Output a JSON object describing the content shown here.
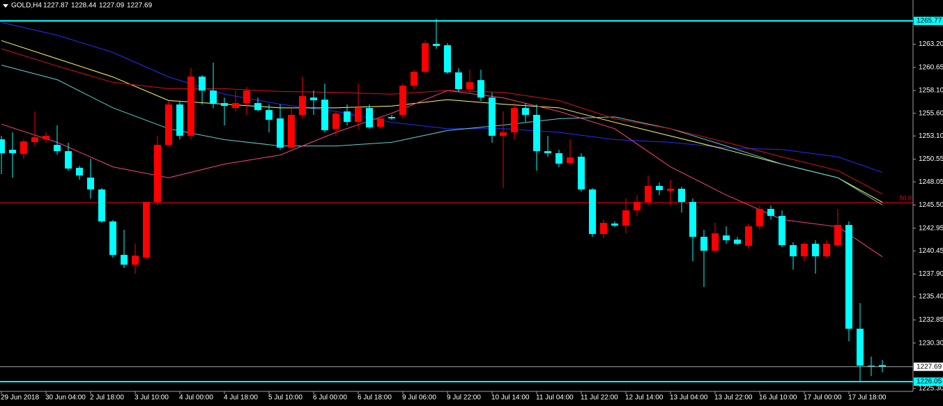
{
  "chart_data": {
    "type": "candlestick",
    "symbol": "GOLD,H4",
    "background": "#000000",
    "up_color": "#ff0000",
    "down_color": "#00ffff",
    "categories": [
      "29 Jun 2018",
      null,
      null,
      null,
      "30 Jun 04:00",
      null,
      null,
      null,
      "2 Jul 18:00",
      null,
      null,
      null,
      "3 Jul 10:00",
      null,
      null,
      null,
      "4 Jul 00:00",
      null,
      null,
      null,
      "4 Jul 18:00",
      null,
      null,
      null,
      "5 Jul 10:00",
      null,
      null,
      null,
      "6 Jul 00:00",
      null,
      null,
      null,
      "6 Jul 18:00",
      null,
      null,
      null,
      "9 Jul 06:00",
      null,
      null,
      null,
      "9 Jul 22:00",
      null,
      null,
      null,
      "10 Jul 14:00",
      null,
      null,
      null,
      "11 Jul 04:00",
      null,
      null,
      null,
      "11 Jul 22:00",
      null,
      null,
      null,
      "12 Jul 14:00",
      null,
      null,
      null,
      "13 Jul 04:00",
      null,
      null,
      null,
      "13 Jul 22:00",
      null,
      null,
      null,
      "16 Jul 10:00",
      null,
      null,
      null,
      "17 Jul 00:00",
      null,
      null,
      null,
      "17 Jul 18:00",
      null,
      null,
      null
    ],
    "open": [
      1252.73,
      1251.58,
      1251.12,
      1252.43,
      1252.73,
      1252.12,
      1251.43,
      1249.59,
      1248.52,
      1247.21,
      1243.69,
      1240.01,
      1238.93,
      1239.7,
      1245.83,
      1252.12,
      1256.57,
      1253.12,
      1259.64,
      1258.1,
      1256.72,
      1256.18,
      1256.72,
      1256.72,
      1255.95,
      1255.03,
      1251.81,
      1255.42,
      1257.33,
      1257.1,
      1253.88,
      1255.8,
      1254.65,
      1256.18,
      1254.11,
      1255.19,
      1255.42,
      1258.64,
      1260.17,
      1263.24,
      1263.09,
      1260.1,
      1258.25,
      1259.25,
      1257.33,
      1253.12,
      1253.5,
      1256.18,
      1255.42,
      1251.43,
      1251.2,
      1250.13,
      1250.82,
      1247.21,
      1242.31,
      1243.46,
      1243.23,
      1244.91,
      1245.83,
      1247.6,
      1247.06,
      1247.29,
      1245.83,
      1242.0,
      1240.47,
      1242.15,
      1241.69,
      1241.0,
      1243.15,
      1245.07,
      1244.3,
      1241.08,
      1239.85,
      1241.23,
      1239.85,
      1241.08,
      1243.3,
      1231.88,
      1227.81,
      1227.87
    ],
    "high": [
      1253.12,
      1253.5,
      1252.73,
      1255.8,
      1253.5,
      1254.27,
      1252.35,
      1249.82,
      1250.59,
      1247.37,
      1243.84,
      1242.77,
      1241.23,
      1245.83,
      1253.12,
      1256.95,
      1256.95,
      1260.56,
      1259.79,
      1261.17,
      1257.33,
      1258.1,
      1258.48,
      1257.33,
      1256.57,
      1256.57,
      1256.18,
      1259.64,
      1258.1,
      1258.87,
      1255.8,
      1256.57,
      1258.87,
      1256.57,
      1255.19,
      1255.42,
      1258.87,
      1260.4,
      1263.62,
      1266.0,
      1263.32,
      1260.56,
      1260.4,
      1260.4,
      1257.87,
      1255.8,
      1256.72,
      1256.72,
      1256.57,
      1253.12,
      1251.58,
      1252.73,
      1251.2,
      1247.37,
      1243.92,
      1243.69,
      1246.22,
      1246.6,
      1248.75,
      1247.98,
      1248.29,
      1247.52,
      1246.22,
      1242.77,
      1243.53,
      1243.15,
      1242.0,
      1243.38,
      1245.45,
      1245.45,
      1244.91,
      1241.39,
      1241.39,
      1241.62,
      1241.62,
      1245.07,
      1243.69,
      1234.71,
      1228.81,
      1228.44
    ],
    "low": [
      1248.9,
      1248.52,
      1250.59,
      1251.97,
      1252.35,
      1251.05,
      1249.28,
      1248.29,
      1246.22,
      1243.53,
      1239.7,
      1238.55,
      1237.93,
      1239.55,
      1245.45,
      1251.97,
      1252.73,
      1252.73,
      1256.57,
      1256.18,
      1254.27,
      1255.8,
      1255.42,
      1255.8,
      1253.5,
      1251.58,
      1251.74,
      1255.03,
      1255.42,
      1253.5,
      1253.12,
      1254.27,
      1253.88,
      1253.88,
      1253.96,
      1254.88,
      1255.03,
      1258.25,
      1259.94,
      1262.7,
      1259.94,
      1257.95,
      1257.72,
      1256.95,
      1252.35,
      1247.37,
      1252.73,
      1254.65,
      1249.28,
      1250.82,
      1249.67,
      1249.97,
      1246.98,
      1242.0,
      1241.85,
      1243.07,
      1242.38,
      1244.3,
      1245.45,
      1246.6,
      1245.45,
      1244.68,
      1239.31,
      1236.48,
      1240.31,
      1241.23,
      1241.08,
      1240.7,
      1242.77,
      1243.92,
      1240.85,
      1238.39,
      1239.31,
      1237.93,
      1239.7,
      1240.85,
      1230.5,
      1226.13,
      1226.66,
      1227.09
    ],
    "close": [
      1251.2,
      1251.2,
      1252.5,
      1252.96,
      1253.12,
      1251.43,
      1249.51,
      1248.75,
      1247.21,
      1243.69,
      1240.01,
      1238.93,
      1239.93,
      1245.83,
      1252.12,
      1256.57,
      1253.12,
      1259.64,
      1258.1,
      1256.72,
      1256.41,
      1256.72,
      1258.1,
      1255.95,
      1254.88,
      1251.81,
      1255.42,
      1257.49,
      1257.03,
      1253.73,
      1255.57,
      1254.65,
      1256.18,
      1254.04,
      1255.03,
      1255.03,
      1258.64,
      1260.17,
      1263.32,
      1263.01,
      1260.1,
      1258.25,
      1259.02,
      1257.33,
      1253.12,
      1253.5,
      1256.18,
      1255.42,
      1251.43,
      1251.2,
      1250.05,
      1250.74,
      1247.21,
      1242.31,
      1243.53,
      1243.23,
      1244.91,
      1245.83,
      1247.6,
      1247.14,
      1247.29,
      1245.83,
      1242.0,
      1240.47,
      1242.38,
      1241.62,
      1241.23,
      1243.15,
      1245.07,
      1244.3,
      1241.08,
      1239.85,
      1241.23,
      1239.85,
      1241.23,
      1243.3,
      1231.88,
      1227.81,
      1227.74,
      1227.69
    ],
    "overlays": [
      {
        "color": "#2030ff",
        "x": [
          0,
          5,
          10,
          15,
          20,
          25,
          30,
          35,
          40,
          45,
          50,
          55,
          60,
          65,
          70,
          75,
          79
        ],
        "values": [
          1265.6,
          1264.2,
          1262.3,
          1259.6,
          1257.7,
          1256.6,
          1255.8,
          1254.6,
          1253.9,
          1253.9,
          1253.5,
          1252.7,
          1252.4,
          1251.8,
          1251.6,
          1250.8,
          1249.1
        ]
      },
      {
        "color": "#ffff60",
        "x": [
          0,
          5,
          10,
          15,
          20,
          25,
          30,
          35,
          40,
          45,
          50,
          55,
          60,
          65,
          70,
          75,
          79
        ],
        "values": [
          1263.6,
          1261.6,
          1259.6,
          1257.0,
          1256.6,
          1256.2,
          1256.2,
          1256.4,
          1257.1,
          1256.6,
          1256.2,
          1254.6,
          1253.1,
          1251.6,
          1250.0,
          1248.5,
          1245.8
        ]
      },
      {
        "color": "#60d0d0",
        "x": [
          0,
          5,
          10,
          15,
          20,
          25,
          30,
          35,
          40,
          45,
          50,
          55,
          60,
          65,
          70,
          75,
          79
        ],
        "values": [
          1260.9,
          1259.3,
          1256.2,
          1253.9,
          1252.7,
          1252.0,
          1252.0,
          1252.4,
          1253.7,
          1254.3,
          1255.0,
          1255.2,
          1253.9,
          1252.0,
          1250.0,
          1248.5,
          1245.5
        ]
      },
      {
        "color": "#e01010",
        "x": [
          0,
          5,
          10,
          15,
          20,
          25,
          30,
          35,
          40,
          45,
          50,
          55,
          60,
          65,
          70,
          75,
          79
        ],
        "values": [
          1262.7,
          1260.8,
          1259.0,
          1258.3,
          1258.3,
          1258.0,
          1257.9,
          1257.7,
          1258.1,
          1257.9,
          1257.0,
          1255.0,
          1253.9,
          1252.4,
          1250.8,
          1249.3,
          1246.7
        ]
      },
      {
        "color": "#ff4080",
        "x": [
          0,
          5,
          10,
          15,
          20,
          25,
          30,
          35,
          40,
          45,
          50,
          55,
          60,
          65,
          70,
          75,
          79
        ],
        "values": [
          1254.4,
          1252.4,
          1249.7,
          1248.5,
          1250.0,
          1251.0,
          1253.5,
          1255.6,
          1258.1,
          1257.3,
          1255.8,
          1253.9,
          1249.7,
          1246.6,
          1243.9,
          1243.1,
          1239.8
        ]
      }
    ],
    "hlines": [
      {
        "value": 1265.77,
        "color": "#00ffff"
      },
      {
        "value": 1226.05,
        "color": "#00ffff"
      }
    ],
    "bid_color": "#a0a0a0",
    "fib": {
      "price": 1245.76,
      "level": "50.0",
      "color": "#ff0000"
    },
    "ylim": [
      1224.98,
      1268.07
    ],
    "yticks": [
      {
        "value": 1263.2,
        "label": "1263.20"
      },
      1260.65,
      {
        "value": 1258.1,
        "label": "1258.10"
      },
      {
        "value": 1255.6,
        "label": "1255.60"
      },
      {
        "value": 1253.1,
        "label": "1253.10"
      },
      1250.55,
      1248.05,
      {
        "value": 1245.5,
        "label": "1245.50"
      },
      1242.95,
      1240.45,
      {
        "value": 1237.9,
        "label": "1237.90"
      },
      {
        "value": 1235.4,
        "label": "1235.40"
      },
      1232.85,
      {
        "value": 1230.3,
        "label": "1230.30"
      },
      {
        "value": 1225.3,
        "label": "1225.30"
      }
    ]
  }
}
